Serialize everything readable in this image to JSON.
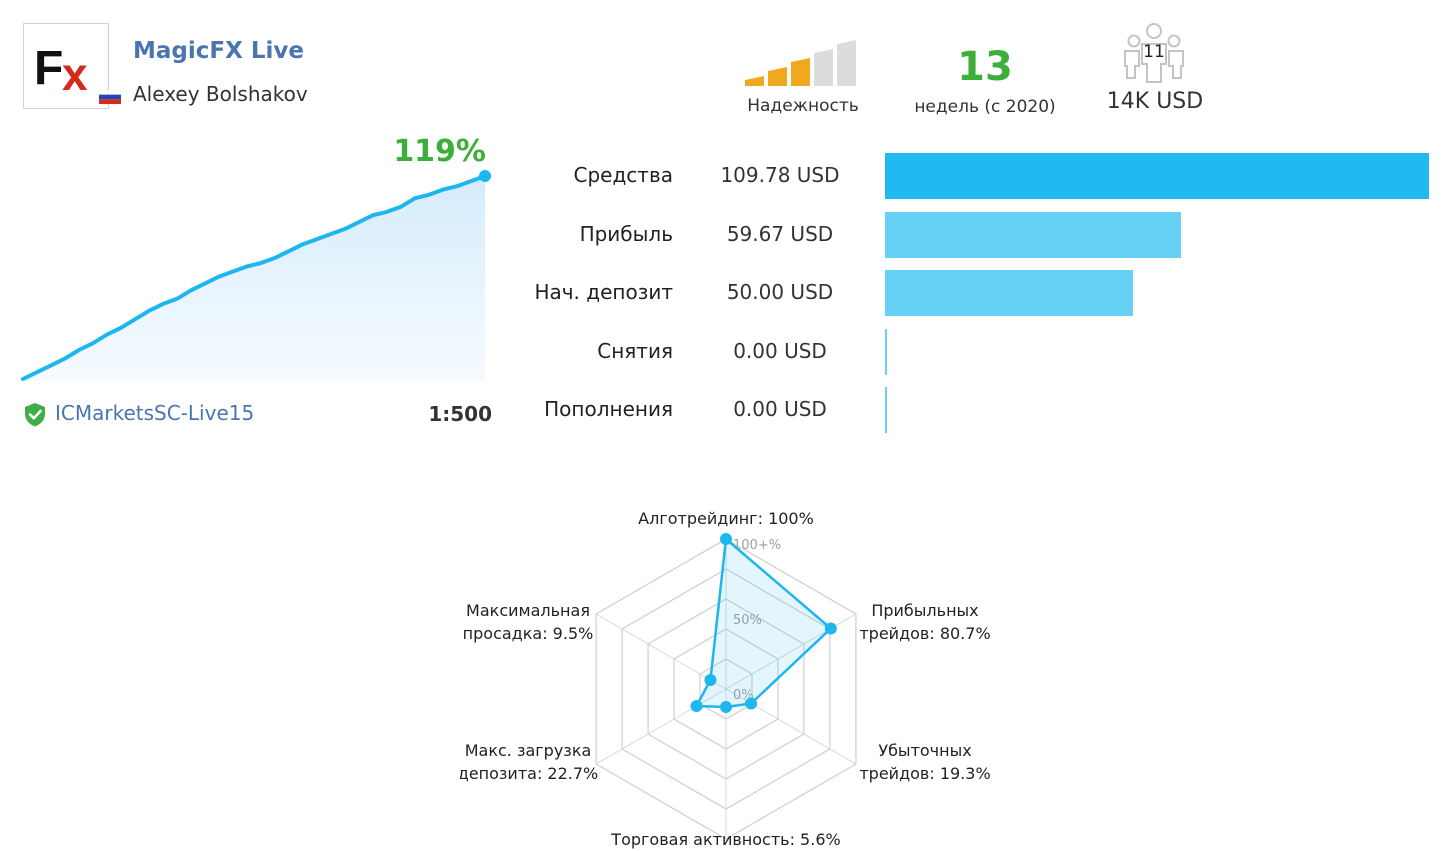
{
  "header": {
    "title": "MagicFX Live",
    "author": "Alexey Bolshakov",
    "reliability_label": "Надежность",
    "reliability_level": 3,
    "reliability_max": 5,
    "weeks_value": "13",
    "weeks_label": "недель (с 2020)",
    "subscribers_count": "11",
    "funds": "14K USD"
  },
  "growth": {
    "percent": "119%",
    "broker": "ICMarketsSC-Live15",
    "leverage": "1:500",
    "series": [
      0,
      4,
      8,
      12,
      17,
      21,
      26,
      30,
      35,
      40,
      44,
      47,
      52,
      56,
      60,
      63,
      66,
      68,
      71,
      75,
      79,
      82,
      85,
      88,
      92,
      96,
      98,
      101,
      106,
      108,
      111,
      113,
      116,
      119
    ]
  },
  "stats": [
    {
      "label": "Средства",
      "value": "109.78 USD",
      "amount": 109.78
    },
    {
      "label": "Прибыль",
      "value": "59.67 USD",
      "amount": 59.67
    },
    {
      "label": "Нач. депозит",
      "value": "50.00 USD",
      "amount": 50.0
    },
    {
      "label": "Снятия",
      "value": "0.00 USD",
      "amount": 0
    },
    {
      "label": "Пополнения",
      "value": "0.00 USD",
      "amount": 0
    }
  ],
  "colors": {
    "accent": "#1eb6ee",
    "bar_primary": "#22b8f0",
    "bar_secondary": "#66d0f5",
    "positive": "#3cae3a",
    "link": "#4a75b0"
  },
  "chart_data": {
    "type": "radar",
    "axes": [
      {
        "label_lines": [
          "Алготрейдинг: 100%"
        ],
        "value": 100
      },
      {
        "label_lines": [
          "Прибыльных",
          "трейдов: 80.7%"
        ],
        "value": 80.7
      },
      {
        "label_lines": [
          "Убыточных",
          "трейдов: 19.3%"
        ],
        "value": 19.3
      },
      {
        "label_lines": [
          "Торговая активность: 5.6%"
        ],
        "value": 5.6
      },
      {
        "label_lines": [
          "Макс. загрузка",
          "депозита: 22.7%"
        ],
        "value": 22.7
      },
      {
        "label_lines": [
          "Максимальная",
          "просадка: 9.5%"
        ],
        "value": 9.5
      }
    ],
    "ticks": [
      "0%",
      "50%",
      "100+%"
    ],
    "range": [
      0,
      100
    ]
  }
}
